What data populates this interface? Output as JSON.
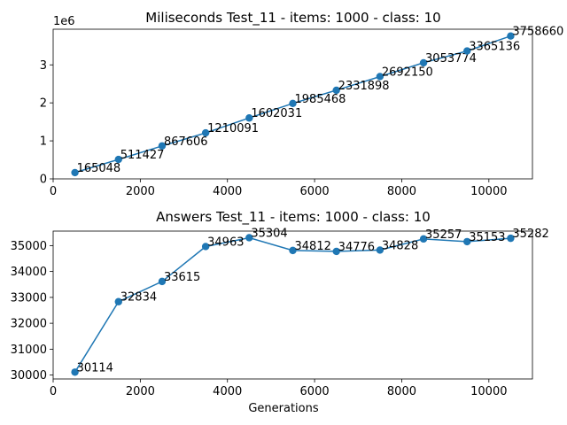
{
  "chart_data": [
    {
      "type": "line",
      "title": "Miliseconds Test_11 - items: 1000 - class: 10",
      "xlabel": "",
      "ylabel": "",
      "y_offset_label": "1e6",
      "xlim": [
        0,
        11000
      ],
      "ylim": [
        0,
        3938000
      ],
      "x_ticks": [
        0,
        2000,
        4000,
        6000,
        8000,
        10000
      ],
      "y_ticks": [
        0,
        1000000,
        2000000,
        3000000
      ],
      "y_tick_labels": [
        "0",
        "1",
        "2",
        "3"
      ],
      "color": "#1f77b4",
      "grid": false,
      "x": [
        500,
        1500,
        2500,
        3500,
        4500,
        5500,
        6500,
        7500,
        8500,
        9500,
        10500
      ],
      "y": [
        165048,
        511427,
        867606,
        1210091,
        1602031,
        1985468,
        2331898,
        2692150,
        3053774,
        3365136,
        3758660
      ],
      "labels": [
        "165048",
        "511427",
        "867606",
        "1210091",
        "1602031",
        "1985468",
        "2331898",
        "2692150",
        "3053774",
        "3365136",
        "3758660"
      ]
    },
    {
      "type": "line",
      "title": "Answers Test_11 - items: 1000 - class: 10",
      "xlabel": "Generations",
      "ylabel": "",
      "xlim": [
        0,
        11000
      ],
      "ylim": [
        29850,
        35560
      ],
      "x_ticks": [
        0,
        2000,
        4000,
        6000,
        8000,
        10000
      ],
      "y_ticks": [
        30000,
        31000,
        32000,
        33000,
        34000,
        35000
      ],
      "y_tick_labels": [
        "30000",
        "31000",
        "32000",
        "33000",
        "34000",
        "35000"
      ],
      "color": "#1f77b4",
      "grid": false,
      "x": [
        500,
        1500,
        2500,
        3500,
        4500,
        5500,
        6500,
        7500,
        8500,
        9500,
        10500
      ],
      "y": [
        30114,
        32834,
        33615,
        34963,
        35304,
        34812,
        34776,
        34828,
        35257,
        35153,
        35282
      ],
      "labels": [
        "30114",
        "32834",
        "33615",
        "34963",
        "35304",
        "34812",
        "34776",
        "34828",
        "35257",
        "35153",
        "35282"
      ]
    }
  ]
}
